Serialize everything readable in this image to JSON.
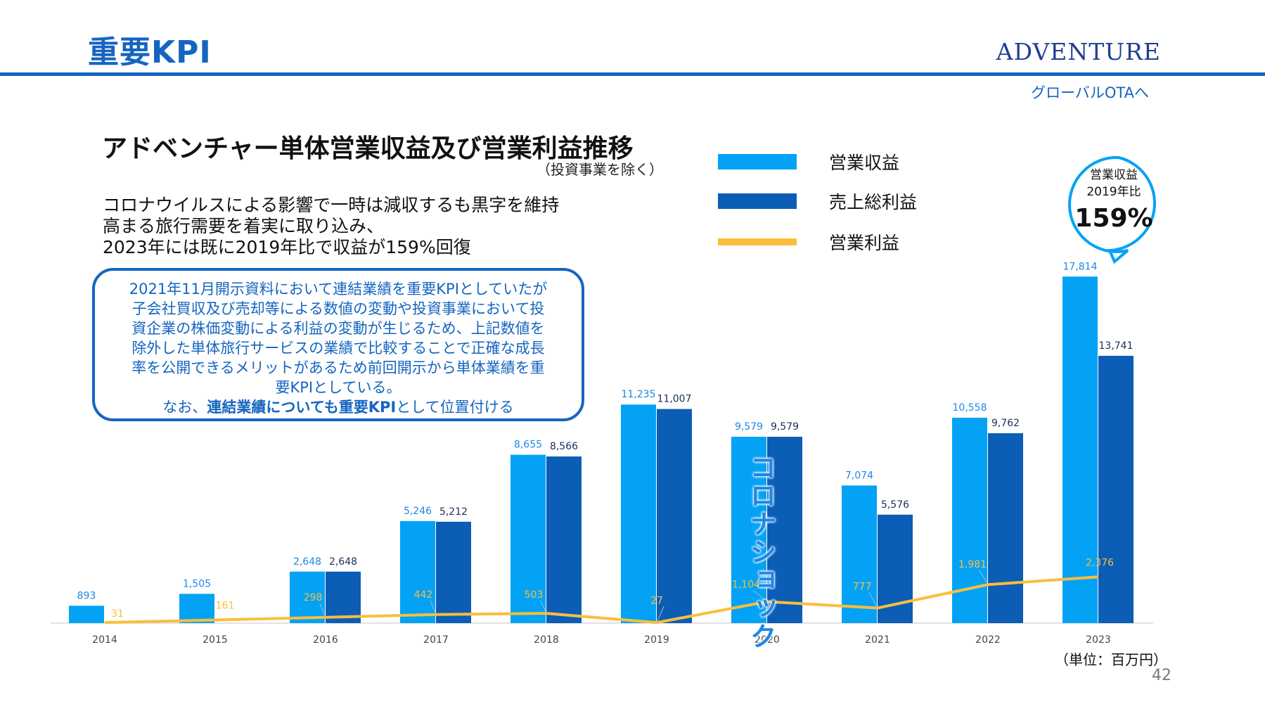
{
  "header": {
    "title": "重要KPI",
    "logo": "ADVENTURE",
    "tagline": "グローバルOTAへ"
  },
  "section": {
    "title": "アドベンチャー単体営業収益及び営業利益推移",
    "note": "（投資事業を除く）"
  },
  "summary": [
    "コロナウイルスによる影響で一時は減収するも黒字を維持",
    "高まる旅行需要を着実に取り込み、",
    "2023年には既に2019年比で収益が159%回復"
  ],
  "note_box": {
    "lines": [
      "2021年11月開示資料において連結業績を重要KPIとしていたが",
      "子会社買収及び売却等による数値の変動や投資事業において投",
      "資企業の株価変動による利益の変動が生じるため、上記数値を",
      "除外した単体旅行サービスの業績で比較することで正確な成長",
      "率を公開できるメリットがあるため前回開示から単体業績を重",
      "要KPIとしている。"
    ],
    "last_prefix": "なお、",
    "last_bold": "連結業績についても重要KPI",
    "last_suffix": "として位置付ける"
  },
  "callout": {
    "line1": "営業収益",
    "line2": "2019年比",
    "value": "159%"
  },
  "annotation": "コロナショック",
  "unit": "（単位：百万円）",
  "page_number": "42",
  "colors": {
    "revenue": "#03a2f5",
    "gross_profit": "#0b5db5",
    "operating_profit": "#fbbe3c",
    "accent": "#1565c0"
  },
  "chart_data": {
    "type": "bar",
    "categories": [
      "2014",
      "2015",
      "2016",
      "2017",
      "2018",
      "2019",
      "2020",
      "2021",
      "2022",
      "2023"
    ],
    "series": [
      {
        "name": "営業収益",
        "type": "bar",
        "values": [
          893,
          1505,
          2648,
          5246,
          8655,
          11235,
          9579,
          7074,
          10558,
          17814
        ],
        "labels": [
          "893",
          "1,505",
          "2,648",
          "5,246",
          "8,655",
          "11,235",
          "9,579",
          "7,074",
          "10,558",
          "17,814"
        ]
      },
      {
        "name": "売上総利益",
        "type": "bar",
        "values": [
          null,
          null,
          2648,
          5212,
          8566,
          11007,
          9579,
          5576,
          9762,
          13741
        ],
        "labels": [
          "",
          "",
          "2,648",
          "5,212",
          "8,566",
          "11,007",
          "9,579",
          "5,576",
          "9,762",
          "13,741"
        ]
      },
      {
        "name": "営業利益",
        "type": "line",
        "values": [
          31,
          161,
          298,
          442,
          503,
          27,
          1104,
          777,
          1981,
          2376
        ],
        "labels": [
          "31",
          "161",
          "298",
          "442",
          "503",
          "27",
          "1,104",
          "777",
          "1,981",
          "2,376"
        ]
      }
    ],
    "ylim": [
      0,
      18000
    ],
    "grid": false,
    "legend": "top-right"
  }
}
